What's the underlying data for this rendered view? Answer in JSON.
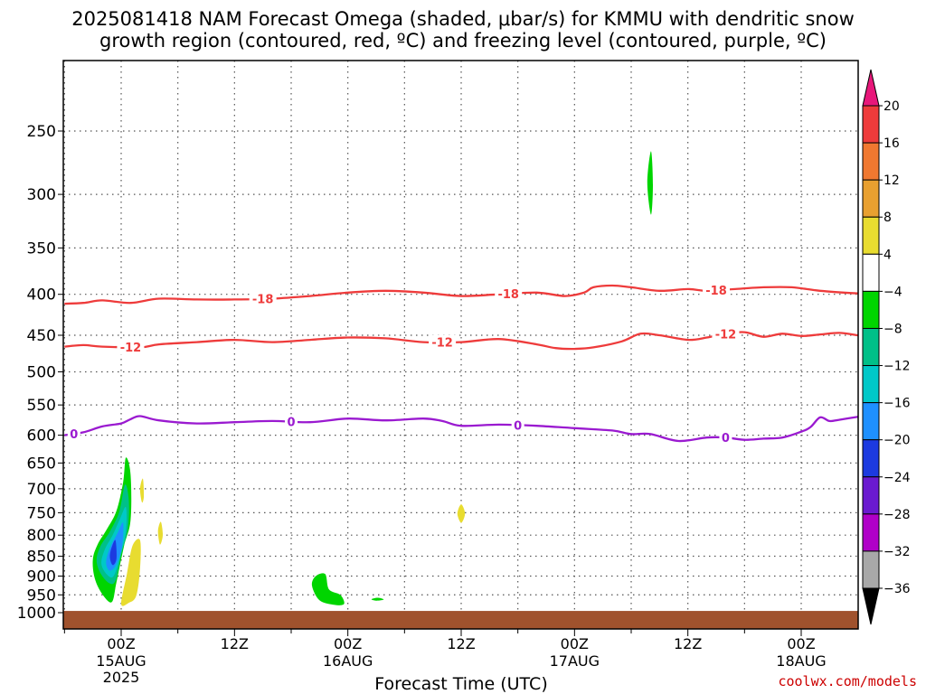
{
  "title_line1": "2025081418 NAM Forecast Omega (shaded, μbar/s) for KMMU with dendritic snow",
  "title_line2": "growth region (contoured, red, ºC) and freezing level (contoured, purple, ºC)",
  "credit": "coolwx.com/models",
  "chart_data": {
    "type": "area",
    "xlabel": "Forecast Time (UTC)",
    "ylabel": "",
    "y_scale": "log-pressure",
    "y_ticks": [
      250,
      300,
      350,
      400,
      450,
      500,
      550,
      600,
      650,
      700,
      750,
      800,
      850,
      900,
      950,
      1000
    ],
    "ylim": [
      1030,
      200
    ],
    "x_unit": "forecast hour",
    "xlim": [
      -6,
      78
    ],
    "x_ticks": [
      {
        "hour": 0,
        "label": "00Z",
        "sub": "15AUG",
        "sub2": "2025"
      },
      {
        "hour": 12,
        "label": "12Z",
        "sub": "",
        "sub2": ""
      },
      {
        "hour": 24,
        "label": "00Z",
        "sub": "16AUG",
        "sub2": ""
      },
      {
        "hour": 36,
        "label": "12Z",
        "sub": "",
        "sub2": ""
      },
      {
        "hour": 48,
        "label": "00Z",
        "sub": "17AUG",
        "sub2": ""
      },
      {
        "hour": 60,
        "label": "12Z",
        "sub": "",
        "sub2": ""
      },
      {
        "hour": 72,
        "label": "00Z",
        "sub": "18AUG",
        "sub2": ""
      }
    ],
    "grid": true,
    "ground_level_hpa": 995,
    "ground_color": "#a0522d",
    "contours": [
      {
        "label": "-18",
        "color": "#ee3b3b",
        "points": [
          [
            -6,
            411
          ],
          [
            -4,
            410
          ],
          [
            -2,
            407
          ],
          [
            1,
            410
          ],
          [
            4,
            405
          ],
          [
            8,
            406
          ],
          [
            12,
            406
          ],
          [
            16,
            405
          ],
          [
            20,
            402
          ],
          [
            24,
            398
          ],
          [
            28,
            396
          ],
          [
            32,
            398
          ],
          [
            36,
            402
          ],
          [
            40,
            400
          ],
          [
            44,
            398
          ],
          [
            47,
            402
          ],
          [
            49,
            398
          ],
          [
            50,
            392
          ],
          [
            52,
            390
          ],
          [
            54,
            392
          ],
          [
            57,
            396
          ],
          [
            60,
            394
          ],
          [
            62,
            396
          ],
          [
            65,
            394
          ],
          [
            68,
            392
          ],
          [
            71,
            392
          ],
          [
            74,
            396
          ],
          [
            78,
            399
          ]
        ],
        "label_at": [
          15,
          41,
          63
        ]
      },
      {
        "label": "-12",
        "color": "#ee3b3b",
        "points": [
          [
            -6,
            465
          ],
          [
            -4,
            463
          ],
          [
            -2,
            465
          ],
          [
            2,
            466
          ],
          [
            4,
            462
          ],
          [
            8,
            459
          ],
          [
            12,
            456
          ],
          [
            16,
            459
          ],
          [
            20,
            456
          ],
          [
            24,
            453
          ],
          [
            28,
            454
          ],
          [
            32,
            459
          ],
          [
            36,
            459
          ],
          [
            40,
            455
          ],
          [
            44,
            462
          ],
          [
            46,
            467
          ],
          [
            48,
            468
          ],
          [
            50,
            466
          ],
          [
            53,
            458
          ],
          [
            55,
            448
          ],
          [
            57,
            450
          ],
          [
            60,
            456
          ],
          [
            62,
            453
          ],
          [
            64,
            448
          ],
          [
            66,
            446
          ],
          [
            68,
            452
          ],
          [
            70,
            448
          ],
          [
            72,
            451
          ],
          [
            74,
            449
          ],
          [
            76,
            447
          ],
          [
            78,
            450
          ]
        ],
        "label_at": [
          1,
          34,
          64
        ]
      },
      {
        "label": "0",
        "color": "#9a1ad0",
        "points": [
          [
            -6,
            600
          ],
          [
            -4,
            595
          ],
          [
            -2,
            585
          ],
          [
            0,
            580
          ],
          [
            1,
            573
          ],
          [
            2,
            568
          ],
          [
            4,
            575
          ],
          [
            8,
            580
          ],
          [
            12,
            578
          ],
          [
            16,
            576
          ],
          [
            20,
            578
          ],
          [
            24,
            572
          ],
          [
            28,
            575
          ],
          [
            32,
            572
          ],
          [
            34,
            576
          ],
          [
            36,
            584
          ],
          [
            40,
            582
          ],
          [
            44,
            584
          ],
          [
            48,
            588
          ],
          [
            52,
            592
          ],
          [
            54,
            598
          ],
          [
            56,
            598
          ],
          [
            59,
            610
          ],
          [
            62,
            604
          ],
          [
            64,
            604
          ],
          [
            66,
            608
          ],
          [
            68,
            606
          ],
          [
            70,
            604
          ],
          [
            72,
            594
          ],
          [
            73,
            586
          ],
          [
            74,
            570
          ],
          [
            75,
            576
          ],
          [
            76,
            574
          ],
          [
            78,
            569
          ]
        ],
        "label_at": [
          -5,
          18,
          42,
          64
        ]
      }
    ],
    "omega_regions": [
      {
        "value": -6,
        "color": "#00d500",
        "points": [
          [
            -3.0,
            858
          ],
          [
            -2.5,
            822
          ],
          [
            -1.5,
            786
          ],
          [
            -0.5,
            746
          ],
          [
            0.2,
            688
          ],
          [
            0.5,
            640
          ],
          [
            1.0,
            672
          ],
          [
            1.0,
            766
          ],
          [
            0.3,
            826
          ],
          [
            -0.5,
            916
          ],
          [
            -1.0,
            970
          ],
          [
            -2.0,
            948
          ],
          [
            -2.8,
            906
          ]
        ]
      },
      {
        "value": -10,
        "color": "#00c088",
        "points": [
          [
            -2.6,
            860
          ],
          [
            -2.2,
            826
          ],
          [
            -1.2,
            792
          ],
          [
            -0.2,
            748
          ],
          [
            0.4,
            692
          ],
          [
            0.8,
            722
          ],
          [
            0.7,
            786
          ],
          [
            0.0,
            846
          ],
          [
            -0.6,
            912
          ],
          [
            -1.3,
            918
          ],
          [
            -2.2,
            892
          ]
        ]
      },
      {
        "value": -14,
        "color": "#00c8c8",
        "points": [
          [
            -2.1,
            868
          ],
          [
            -1.7,
            832
          ],
          [
            -0.9,
            800
          ],
          [
            -0.1,
            762
          ],
          [
            0.5,
            738
          ],
          [
            0.5,
            790
          ],
          [
            -0.1,
            850
          ],
          [
            -0.8,
            900
          ],
          [
            -1.5,
            896
          ]
        ]
      },
      {
        "value": -18,
        "color": "#1e90ff",
        "points": [
          [
            -1.6,
            866
          ],
          [
            -1.2,
            830
          ],
          [
            -0.4,
            796
          ],
          [
            0.2,
            772
          ],
          [
            0.1,
            826
          ],
          [
            -0.5,
            870
          ],
          [
            -1.2,
            886
          ]
        ]
      },
      {
        "value": -22,
        "color": "#1c3ae0",
        "points": [
          [
            -1.2,
            852
          ],
          [
            -1.0,
            828
          ],
          [
            -0.6,
            812
          ],
          [
            -0.5,
            856
          ],
          [
            -0.9,
            872
          ]
        ]
      },
      {
        "value": 6,
        "color": "#e8dc30",
        "points": [
          [
            0.0,
            975
          ],
          [
            0.6,
            895
          ],
          [
            1.2,
            825
          ],
          [
            2.0,
            812
          ],
          [
            2.0,
            880
          ],
          [
            1.6,
            952
          ],
          [
            0.8,
            972
          ]
        ]
      },
      {
        "value": 6,
        "color": "#e8dc30",
        "points": [
          [
            2.0,
            700
          ],
          [
            2.3,
            680
          ],
          [
            2.4,
            715
          ],
          [
            2.2,
            728
          ]
        ]
      },
      {
        "value": 6,
        "color": "#e8dc30",
        "points": [
          [
            3.9,
            790
          ],
          [
            4.2,
            770
          ],
          [
            4.4,
            800
          ],
          [
            4.1,
            822
          ]
        ]
      },
      {
        "value": 6,
        "color": "#e8dc30",
        "points": [
          [
            35.6,
            752
          ],
          [
            36.0,
            732
          ],
          [
            36.4,
            752
          ],
          [
            36.0,
            772
          ]
        ]
      },
      {
        "value": -6,
        "color": "#00d500",
        "points": [
          [
            20.2,
            925
          ],
          [
            20.6,
            900
          ],
          [
            21.6,
            895
          ],
          [
            22.0,
            935
          ],
          [
            23.2,
            950
          ],
          [
            23.6,
            975
          ],
          [
            22.6,
            978
          ],
          [
            21.0,
            965
          ]
        ]
      },
      {
        "value": -6,
        "color": "#00d500",
        "points": [
          [
            26.5,
            962
          ],
          [
            27.2,
            958
          ],
          [
            27.8,
            963
          ],
          [
            27.0,
            966
          ]
        ]
      },
      {
        "value": -6,
        "color": "#00d500",
        "points": [
          [
            55.7,
            290
          ],
          [
            56.1,
            265
          ],
          [
            56.3,
            292
          ],
          [
            56.1,
            318
          ]
        ]
      }
    ],
    "colorbar": {
      "top_color": "#e8177a",
      "bottom_color": "#000000",
      "labels": [
        "20",
        "16",
        "12",
        "8",
        "4",
        "−4",
        "−8",
        "−12",
        "−16",
        "−20",
        "−24",
        "−28",
        "−32",
        "−36"
      ],
      "colors": [
        "#ee3b3b",
        "#f07830",
        "#e8a030",
        "#e8dc30",
        "#ffffff",
        "#00d500",
        "#00c088",
        "#00c8c8",
        "#1e90ff",
        "#1c3ae0",
        "#6a1ad0",
        "#b000c8",
        "#a8a8a8"
      ]
    }
  }
}
